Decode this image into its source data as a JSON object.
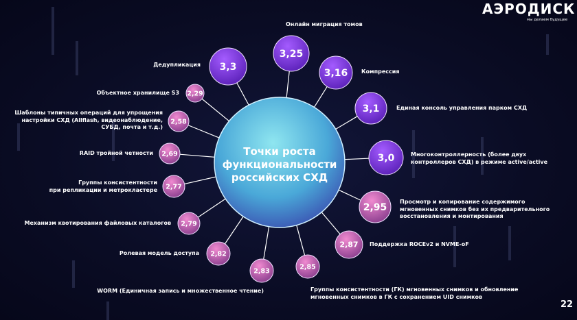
{
  "brand": {
    "logo": "АЭРОДИСК",
    "tagline": "мы делаем будущее"
  },
  "page_number": "22",
  "hub": {
    "title": "Точки роста функциональности российских СХД"
  },
  "colors": {
    "high": "#8a3cf0",
    "low": "#d05aa8",
    "hub": "#5fd0e0",
    "background": "#0a0c24"
  },
  "items": [
    {
      "value": "3,3",
      "label": "Дедупликация"
    },
    {
      "value": "3,25",
      "label": "Онлайн миграция томов"
    },
    {
      "value": "3,16",
      "label": "Компрессия"
    },
    {
      "value": "3,1",
      "label": "Единая консоль управления парком СХД"
    },
    {
      "value": "3,0",
      "label": "Многоконтроллерность (более двух\nконтроллеров СХД) в режиме active/active"
    },
    {
      "value": "2,95",
      "label": "Просмотр и копирование содержимого\nмгновенных снимков без их предварительного\nвосстановления и монтирования"
    },
    {
      "value": "2,87",
      "label": "Поддержка ROCEv2 и NVME-oF"
    },
    {
      "value": "2,85",
      "label": "Группы консистентности (ГК) мгновенных снимков и обновление\nмгновенных снимков в ГК с сохранением UID снимков"
    },
    {
      "value": "2,83",
      "label": "WORM (Единичная запись и множественное чтение)"
    },
    {
      "value": "2,82",
      "label": "Ролевая модель доступа"
    },
    {
      "value": "2,79",
      "label": "Механизм квотирования файловых каталогов"
    },
    {
      "value": "2,77",
      "label": "Группы консистентности\nпри репликации и метрокластере"
    },
    {
      "value": "2,69",
      "label": "RAID тройной четности"
    },
    {
      "value": "2,58",
      "label": "Шаблоны типичных операций для упрощения\nнастройки СХД (Allflash, видеонаблюдение,\nСУБД, почта и т.д.)"
    },
    {
      "value": "2,29",
      "label": "Объектное хранилище S3"
    }
  ]
}
